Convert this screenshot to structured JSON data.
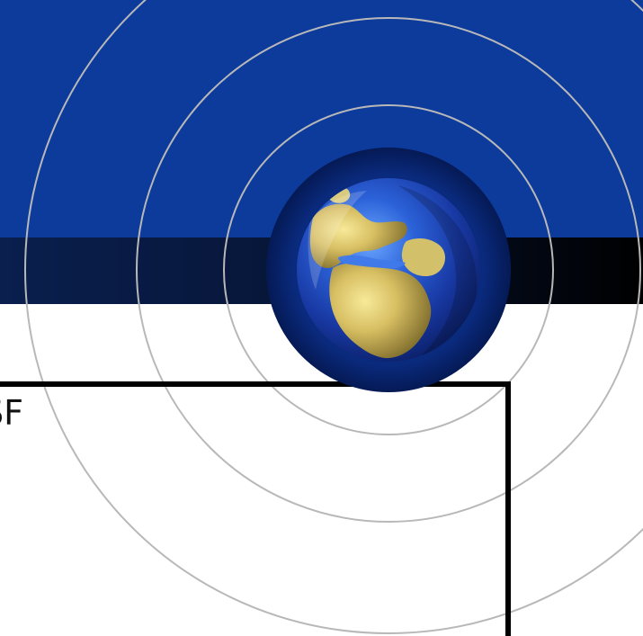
{
  "slide": {
    "fragment_text": "SF"
  },
  "colors": {
    "header_blue": "#0c3b9c",
    "dark_strip": "#071638",
    "ring": "#b8b8b8",
    "frame": "#000000",
    "globe_ocean": "#1a3fa8",
    "globe_land": "#c8b25a"
  },
  "icons": {
    "globe": "globe-earth-icon"
  }
}
